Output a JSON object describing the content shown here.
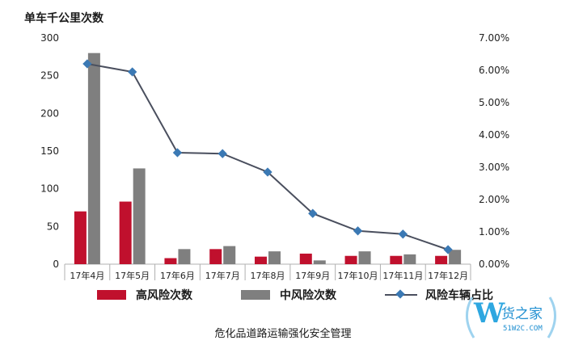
{
  "chart_data": {
    "type": "bar",
    "ylabel": "单车千公里次数",
    "categories": [
      "17年4月",
      "17年5月",
      "17年6月",
      "17年7月",
      "17年8月",
      "17年9月",
      "17年10月",
      "17年11月",
      "17年12月"
    ],
    "series": [
      {
        "name": "高风险次数",
        "type": "bar",
        "axis": "left",
        "color": "#c0102d",
        "values": [
          70,
          83,
          8,
          20,
          10,
          14,
          11,
          11,
          11
        ]
      },
      {
        "name": "中风险次数",
        "type": "bar",
        "axis": "left",
        "color": "#7f7f7f",
        "values": [
          280,
          127,
          20,
          24,
          17,
          5,
          17,
          13,
          19
        ]
      },
      {
        "name": "风险车辆占比",
        "type": "line",
        "axis": "right",
        "color": "#4a4f5e",
        "marker_color": "#3b79b4",
        "values": [
          0.062,
          0.0595,
          0.0345,
          0.0342,
          0.0285,
          0.0157,
          0.0103,
          0.0093,
          0.0045
        ]
      }
    ],
    "ylim": [
      0,
      300
    ],
    "yticks": [
      "0",
      "50",
      "100",
      "150",
      "200",
      "250",
      "300"
    ],
    "y2lim": [
      0,
      0.07
    ],
    "y2ticks": [
      "0.00%",
      "1.00%",
      "2.00%",
      "3.00%",
      "4.00%",
      "5.00%",
      "6.00%",
      "7.00%"
    ],
    "grid": false,
    "legend_position": "bottom"
  },
  "caption": "危化品道路运输强化安全管理",
  "watermark": {
    "mark": "W",
    "text": "货之家",
    "url": "51W2C.COM"
  }
}
